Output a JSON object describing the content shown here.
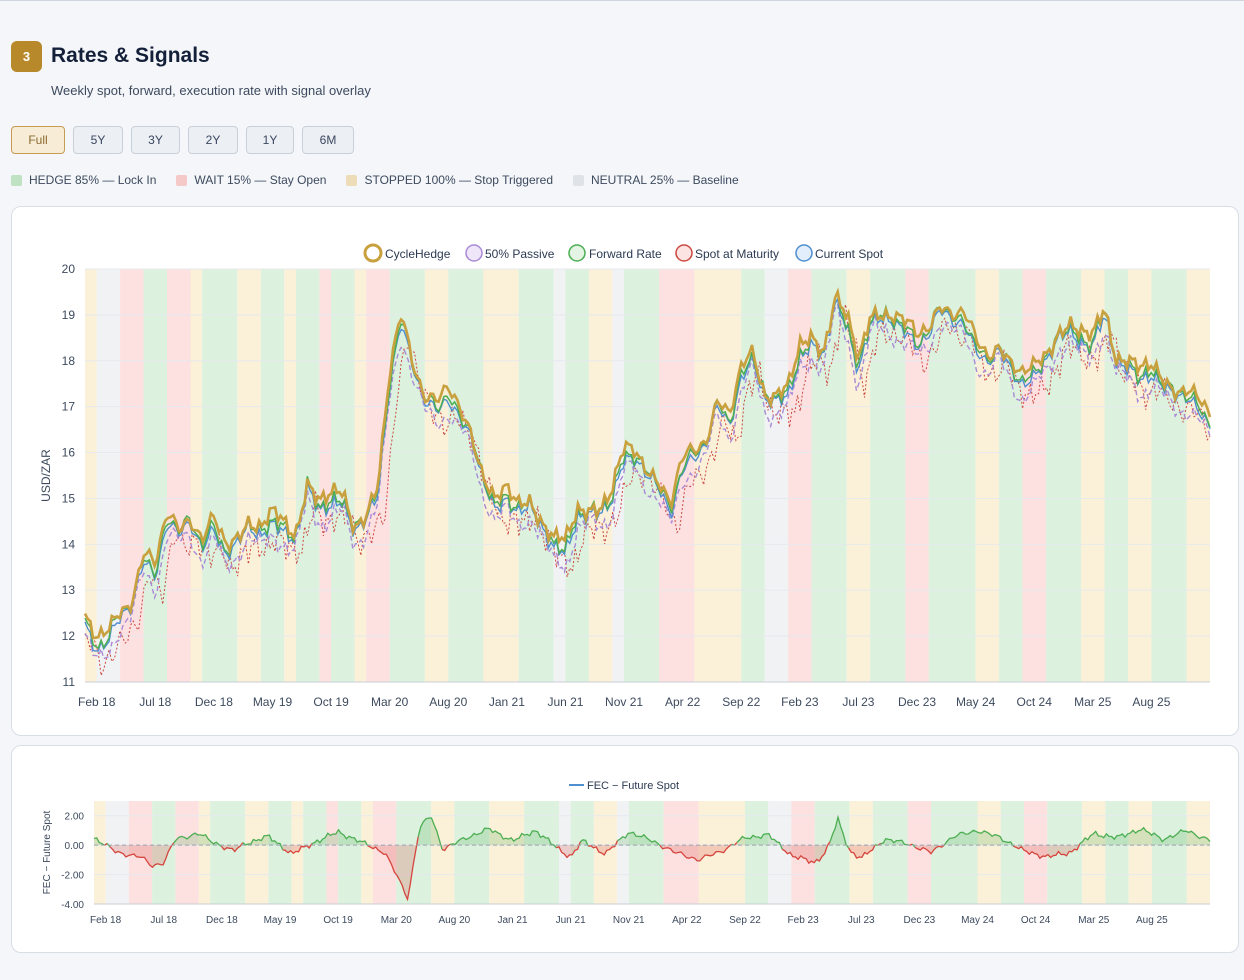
{
  "section": {
    "number": "3",
    "title": "Rates & Signals",
    "subtitle": "Weekly spot, forward, execution rate with signal overlay"
  },
  "range_buttons": [
    {
      "label": "Full",
      "active": true
    },
    {
      "label": "5Y",
      "active": false
    },
    {
      "label": "3Y",
      "active": false
    },
    {
      "label": "2Y",
      "active": false
    },
    {
      "label": "1Y",
      "active": false
    },
    {
      "label": "6M",
      "active": false
    }
  ],
  "signal_legend": [
    {
      "label": "HEDGE 85% — Lock In",
      "color": "#bfe3c2"
    },
    {
      "label": "WAIT 15% — Stay Open",
      "color": "#f6c9c9"
    },
    {
      "label": "STOPPED 100% — Stop Triggered",
      "color": "#ecdcb7"
    },
    {
      "label": "NEUTRAL 25% — Baseline",
      "color": "#dfe2e7"
    }
  ],
  "colors": {
    "hedge": "#dcf1de",
    "wait": "#fde0e0",
    "stopped": "#fbf0d8",
    "neutral": "#f1f2f4",
    "cyclehedge": "#c9a03e",
    "passive": "#a98bd6",
    "forward": "#4cae52",
    "spot_maturity": "#cc4a42",
    "current_spot": "#4f8fd0",
    "fec_pos": "#4cae52",
    "fec_neg": "#d6453d"
  },
  "chart_data": [
    {
      "type": "line",
      "ylabel": "USD/ZAR",
      "ylim": [
        11,
        20
      ],
      "yticks": [
        11,
        12,
        13,
        14,
        15,
        16,
        17,
        18,
        19,
        20
      ],
      "xlim": [
        "2018-01",
        "2026-01"
      ],
      "xtick_labels": [
        "Feb 18",
        "Jul 18",
        "Dec 18",
        "May 19",
        "Oct 19",
        "Mar 20",
        "Aug 20",
        "Jan 21",
        "Jun 21",
        "Nov 21",
        "Apr 22",
        "Sep 22",
        "Feb 23",
        "Jul 23",
        "Dec 23",
        "May 24",
        "Oct 24",
        "Mar 25",
        "Aug 25"
      ],
      "legend_position": "top-center",
      "series": [
        {
          "name": "CycleHedge",
          "style": "solid-thick"
        },
        {
          "name": "50% Passive",
          "style": "dashed"
        },
        {
          "name": "Forward Rate",
          "style": "solid"
        },
        {
          "name": "Spot at Maturity",
          "style": "dotted"
        },
        {
          "name": "Current Spot",
          "style": "solid"
        }
      ],
      "spot_anchors": [
        [
          "2018-01",
          12.2
        ],
        [
          "2018-02",
          11.7
        ],
        [
          "2018-03",
          11.9
        ],
        [
          "2018-04",
          12.4
        ],
        [
          "2018-05",
          12.7
        ],
        [
          "2018-06",
          13.6
        ],
        [
          "2018-07",
          13.3
        ],
        [
          "2018-08",
          14.5
        ],
        [
          "2018-09",
          14.2
        ],
        [
          "2018-10",
          14.5
        ],
        [
          "2018-11",
          13.9
        ],
        [
          "2018-12",
          14.3
        ],
        [
          "2019-01",
          13.8
        ],
        [
          "2019-02",
          14.0
        ],
        [
          "2019-03",
          14.4
        ],
        [
          "2019-04",
          14.2
        ],
        [
          "2019-05",
          14.4
        ],
        [
          "2019-06",
          14.3
        ],
        [
          "2019-07",
          14.1
        ],
        [
          "2019-08",
          15.2
        ],
        [
          "2019-09",
          14.8
        ],
        [
          "2019-10",
          14.8
        ],
        [
          "2019-11",
          14.9
        ],
        [
          "2019-12",
          14.3
        ],
        [
          "2020-01",
          14.5
        ],
        [
          "2020-02",
          15.1
        ],
        [
          "2020-03",
          17.5
        ],
        [
          "2020-04",
          18.8
        ],
        [
          "2020-05",
          17.9
        ],
        [
          "2020-06",
          17.1
        ],
        [
          "2020-07",
          16.9
        ],
        [
          "2020-08",
          17.2
        ],
        [
          "2020-09",
          16.7
        ],
        [
          "2020-10",
          16.3
        ],
        [
          "2020-11",
          15.4
        ],
        [
          "2020-12",
          14.7
        ],
        [
          "2021-01",
          15.0
        ],
        [
          "2021-02",
          14.7
        ],
        [
          "2021-03",
          14.8
        ],
        [
          "2021-04",
          14.4
        ],
        [
          "2021-05",
          13.9
        ],
        [
          "2021-06",
          13.8
        ],
        [
          "2021-07",
          14.6
        ],
        [
          "2021-08",
          14.6
        ],
        [
          "2021-09",
          14.7
        ],
        [
          "2021-10",
          15.0
        ],
        [
          "2021-11",
          15.8
        ],
        [
          "2021-12",
          15.9
        ],
        [
          "2022-01",
          15.5
        ],
        [
          "2022-02",
          15.2
        ],
        [
          "2022-03",
          14.7
        ],
        [
          "2022-04",
          15.6
        ],
        [
          "2022-05",
          15.9
        ],
        [
          "2022-06",
          16.2
        ],
        [
          "2022-07",
          17.0
        ],
        [
          "2022-08",
          16.6
        ],
        [
          "2022-09",
          17.6
        ],
        [
          "2022-10",
          18.0
        ],
        [
          "2022-11",
          17.2
        ],
        [
          "2022-12",
          17.1
        ],
        [
          "2023-01",
          17.2
        ],
        [
          "2023-02",
          18.1
        ],
        [
          "2023-03",
          18.3
        ],
        [
          "2023-04",
          18.1
        ],
        [
          "2023-05",
          19.3
        ],
        [
          "2023-06",
          18.7
        ],
        [
          "2023-07",
          17.8
        ],
        [
          "2023-08",
          18.8
        ],
        [
          "2023-09",
          18.9
        ],
        [
          "2023-10",
          18.9
        ],
        [
          "2023-11",
          18.6
        ],
        [
          "2023-12",
          18.3
        ],
        [
          "2024-01",
          18.6
        ],
        [
          "2024-02",
          19.1
        ],
        [
          "2024-03",
          18.9
        ],
        [
          "2024-04",
          18.8
        ],
        [
          "2024-05",
          18.2
        ],
        [
          "2024-06",
          18.0
        ],
        [
          "2024-07",
          18.2
        ],
        [
          "2024-08",
          17.8
        ],
        [
          "2024-09",
          17.5
        ],
        [
          "2024-10",
          17.6
        ],
        [
          "2024-11",
          18.0
        ],
        [
          "2024-12",
          18.5
        ],
        [
          "2025-01",
          18.6
        ],
        [
          "2025-02",
          18.4
        ],
        [
          "2025-03",
          18.3
        ],
        [
          "2025-04",
          19.0
        ],
        [
          "2025-05",
          18.0
        ],
        [
          "2025-06",
          17.8
        ],
        [
          "2025-07",
          17.6
        ],
        [
          "2025-08",
          17.7
        ],
        [
          "2025-09",
          17.4
        ],
        [
          "2025-10",
          17.3
        ],
        [
          "2025-11",
          17.2
        ],
        [
          "2025-12",
          16.9
        ],
        [
          "2026-01",
          16.6
        ]
      ],
      "signal_bands": [
        [
          "2018-01",
          "2018-02",
          "stopped"
        ],
        [
          "2018-02",
          "2018-04",
          "neutral"
        ],
        [
          "2018-04",
          "2018-06",
          "wait"
        ],
        [
          "2018-06",
          "2018-08",
          "hedge"
        ],
        [
          "2018-08",
          "2018-10",
          "wait"
        ],
        [
          "2018-10",
          "2018-11",
          "stopped"
        ],
        [
          "2018-11",
          "2019-02",
          "hedge"
        ],
        [
          "2019-02",
          "2019-04",
          "stopped"
        ],
        [
          "2019-04",
          "2019-06",
          "hedge"
        ],
        [
          "2019-06",
          "2019-07",
          "stopped"
        ],
        [
          "2019-07",
          "2019-09",
          "hedge"
        ],
        [
          "2019-09",
          "2019-10",
          "wait"
        ],
        [
          "2019-10",
          "2019-12",
          "hedge"
        ],
        [
          "2019-12",
          "2020-01",
          "stopped"
        ],
        [
          "2020-01",
          "2020-03",
          "wait"
        ],
        [
          "2020-03",
          "2020-06",
          "hedge"
        ],
        [
          "2020-06",
          "2020-08",
          "stopped"
        ],
        [
          "2020-08",
          "2020-11",
          "hedge"
        ],
        [
          "2020-11",
          "2021-02",
          "stopped"
        ],
        [
          "2021-02",
          "2021-05",
          "hedge"
        ],
        [
          "2021-05",
          "2021-06",
          "neutral"
        ],
        [
          "2021-06",
          "2021-08",
          "hedge"
        ],
        [
          "2021-08",
          "2021-10",
          "stopped"
        ],
        [
          "2021-10",
          "2021-11",
          "neutral"
        ],
        [
          "2021-11",
          "2022-02",
          "hedge"
        ],
        [
          "2022-02",
          "2022-05",
          "wait"
        ],
        [
          "2022-05",
          "2022-09",
          "stopped"
        ],
        [
          "2022-09",
          "2022-11",
          "hedge"
        ],
        [
          "2022-11",
          "2023-01",
          "neutral"
        ],
        [
          "2023-01",
          "2023-03",
          "wait"
        ],
        [
          "2023-03",
          "2023-06",
          "hedge"
        ],
        [
          "2023-06",
          "2023-08",
          "stopped"
        ],
        [
          "2023-08",
          "2023-11",
          "hedge"
        ],
        [
          "2023-11",
          "2024-01",
          "wait"
        ],
        [
          "2024-01",
          "2024-05",
          "hedge"
        ],
        [
          "2024-05",
          "2024-07",
          "stopped"
        ],
        [
          "2024-07",
          "2024-09",
          "hedge"
        ],
        [
          "2024-09",
          "2024-11",
          "wait"
        ],
        [
          "2024-11",
          "2025-02",
          "hedge"
        ],
        [
          "2025-02",
          "2025-04",
          "stopped"
        ],
        [
          "2025-04",
          "2025-06",
          "hedge"
        ],
        [
          "2025-06",
          "2025-08",
          "stopped"
        ],
        [
          "2025-08",
          "2025-11",
          "hedge"
        ],
        [
          "2025-11",
          "2026-01",
          "stopped"
        ]
      ]
    },
    {
      "type": "area",
      "legend": "FEC − Future Spot",
      "ylabel": "FEC − Future Spot",
      "ylim": [
        -4,
        3
      ],
      "yticks": [
        "2.00",
        "0.00",
        "-2.00",
        "-4.00"
      ],
      "xtick_labels": [
        "Feb 18",
        "Jul 18",
        "Dec 18",
        "May 19",
        "Oct 19",
        "Mar 20",
        "Aug 20",
        "Jan 21",
        "Jun 21",
        "Nov 21",
        "Apr 22",
        "Sep 22",
        "Feb 23",
        "Jul 23",
        "Dec 23",
        "May 24",
        "Oct 24",
        "Mar 25",
        "Aug 25"
      ],
      "anchors": [
        [
          "2018-01",
          0.5
        ],
        [
          "2018-03",
          -0.5
        ],
        [
          "2018-05",
          -0.8
        ],
        [
          "2018-06",
          -1.4
        ],
        [
          "2018-07",
          -1.2
        ],
        [
          "2018-08",
          0.4
        ],
        [
          "2018-10",
          0.8
        ],
        [
          "2018-11",
          0.3
        ],
        [
          "2019-01",
          -0.4
        ],
        [
          "2019-02",
          0.1
        ],
        [
          "2019-04",
          0.6
        ],
        [
          "2019-06",
          -0.6
        ],
        [
          "2019-08",
          0.2
        ],
        [
          "2019-10",
          0.9
        ],
        [
          "2019-12",
          0.2
        ],
        [
          "2020-02",
          -0.5
        ],
        [
          "2020-03",
          -2.0
        ],
        [
          "2020-04",
          -3.6
        ],
        [
          "2020-05",
          1.2
        ],
        [
          "2020-06",
          2.0
        ],
        [
          "2020-07",
          -0.3
        ],
        [
          "2020-09",
          0.5
        ],
        [
          "2020-11",
          1.1
        ],
        [
          "2021-01",
          0.3
        ],
        [
          "2021-03",
          1.0
        ],
        [
          "2021-05",
          -0.3
        ],
        [
          "2021-06",
          -0.8
        ],
        [
          "2021-07",
          0.3
        ],
        [
          "2021-09",
          -0.6
        ],
        [
          "2021-11",
          0.9
        ],
        [
          "2022-01",
          0.3
        ],
        [
          "2022-03",
          -0.5
        ],
        [
          "2022-05",
          -1.0
        ],
        [
          "2022-07",
          -0.4
        ],
        [
          "2022-09",
          0.5
        ],
        [
          "2022-11",
          0.7
        ],
        [
          "2023-01",
          -0.7
        ],
        [
          "2023-03",
          -1.2
        ],
        [
          "2023-04",
          -0.4
        ],
        [
          "2023-05",
          1.7
        ],
        [
          "2023-06",
          -0.4
        ],
        [
          "2023-07",
          -0.9
        ],
        [
          "2023-09",
          0.4
        ],
        [
          "2023-11",
          0.1
        ],
        [
          "2024-01",
          -0.5
        ],
        [
          "2024-03",
          0.6
        ],
        [
          "2024-05",
          1.0
        ],
        [
          "2024-07",
          0.5
        ],
        [
          "2024-09",
          -0.4
        ],
        [
          "2024-11",
          -0.8
        ],
        [
          "2025-01",
          -0.5
        ],
        [
          "2025-03",
          0.8
        ],
        [
          "2025-05",
          0.5
        ],
        [
          "2025-07",
          1.1
        ],
        [
          "2025-09",
          0.4
        ],
        [
          "2025-11",
          1.0
        ],
        [
          "2026-01",
          0.3
        ]
      ]
    }
  ]
}
